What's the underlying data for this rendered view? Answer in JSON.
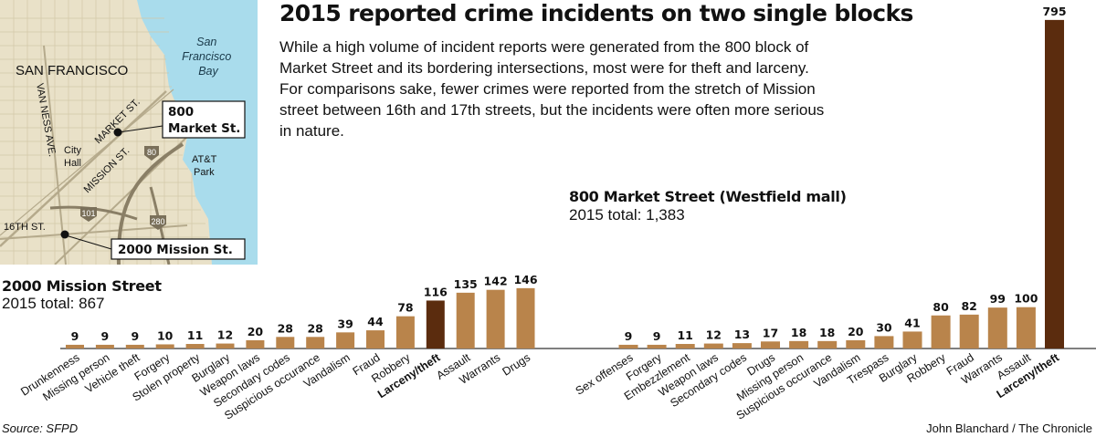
{
  "title": "2015 reported crime incidents on two single blocks",
  "intro": "While a high volume of incident reports were generated from the 800 block of Market Street and its bordering intersections, most were for theft and larceny. For comparisons sake, fewer crimes were reported from the stretch of Mission street between 16th and 17th streets, but the incidents were often more serious in nature.",
  "map": {
    "labels": {
      "city": "SAN FRANCISCO",
      "bay": [
        "San",
        "Francisco",
        "Bay"
      ],
      "van_ness": "VAN NESS AVE.",
      "market": "MARKET ST.",
      "mission": "MISSION ST.",
      "city_hall": [
        "City",
        "Hall"
      ],
      "att_park": [
        "AT&T",
        "Park"
      ],
      "sixteenth": "16TH ST.",
      "hwy80": "80",
      "hwy101": "101",
      "hwy280": "280",
      "callout_market": [
        "800",
        "Market St."
      ],
      "callout_mission": "2000 Mission St."
    },
    "colors": {
      "land": "#e9e1c8",
      "water": "#a9dcec",
      "streets": "#b5aa8c",
      "highway": "#8a7f66"
    }
  },
  "source": "Source: SFPD",
  "credit": "John Blanchard / The Chronicle",
  "chart_data": [
    {
      "type": "bar",
      "title": "2000 Mission Street",
      "subtitle": "2015 total: 867",
      "categories": [
        "Drunkenness",
        "Missing person",
        "Vehicle theft",
        "Forgery",
        "Stolen property",
        "Burglary",
        "Weapon laws",
        "Secondary codes",
        "Suspicious occurance",
        "Vandalism",
        "Fraud",
        "Robbery",
        "Larceny/theft",
        "Assault",
        "Warrants",
        "Drugs"
      ],
      "values": [
        9,
        9,
        9,
        10,
        11,
        12,
        20,
        28,
        28,
        39,
        44,
        78,
        116,
        135,
        142,
        146
      ],
      "highlight": "Larceny/theft",
      "colors": {
        "bar": "#b9844b",
        "highlight": "#5b2c0e"
      },
      "data_labels": true,
      "grid": false
    },
    {
      "type": "bar",
      "title": "800 Market Street (Westfield mall)",
      "subtitle": "2015 total: 1,383",
      "categories": [
        "Sex offenses",
        "Forgery",
        "Embezzlement",
        "Weapon laws",
        "Secondary codes",
        "Drugs",
        "Missing person",
        "Suspicious occurance",
        "Vandalism",
        "Trespass",
        "Burglary",
        "Robbery",
        "Fraud",
        "Warrants",
        "Assault",
        "Larceny/theft"
      ],
      "values": [
        9,
        9,
        11,
        12,
        13,
        17,
        18,
        18,
        20,
        30,
        41,
        80,
        82,
        99,
        100,
        795
      ],
      "highlight": "Larceny/theft",
      "colors": {
        "bar": "#b9844b",
        "highlight": "#5b2c0e"
      },
      "data_labels": true,
      "grid": false
    }
  ]
}
